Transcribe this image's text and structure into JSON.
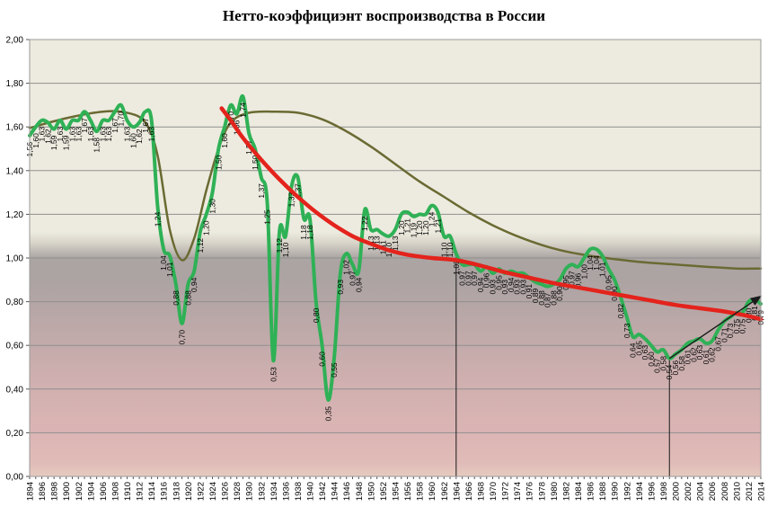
{
  "title": "Нетто-коэффициэнт воспроизводства в России",
  "chart_data": {
    "type": "line",
    "title": "Нетто-коэффициэнт воспроизводства в России",
    "xlabel": "",
    "ylabel": "",
    "x_start_year": 1894,
    "x_end_year": 2014,
    "x_label_step": 2,
    "ylim": [
      0.0,
      2.0
    ],
    "y_tick_step": 0.2,
    "decimal_separator": ",",
    "grid": "horizontal",
    "legend": "none",
    "background_gradient": [
      {
        "pos": 0.0,
        "color": "#EDEBDF"
      },
      {
        "pos": 0.44,
        "color": "#EDEBDF"
      },
      {
        "pos": 0.465,
        "color": "#D8D4C9"
      },
      {
        "pos": 0.5,
        "color": "#ABA5A3"
      },
      {
        "pos": 0.55,
        "color": "#ACA3A3"
      },
      {
        "pos": 0.65,
        "color": "#BCA8A8"
      },
      {
        "pos": 0.775,
        "color": "#CFAFAF"
      },
      {
        "pos": 0.9,
        "color": "#DBB5B4"
      },
      {
        "pos": 0.97,
        "color": "#E0BCB8"
      },
      {
        "pos": 1.0,
        "color": "#E6CABF"
      }
    ],
    "series": [
      {
        "name": "net-reproduction-rate",
        "kind": "annual-data",
        "color": "#2FB156",
        "width": 4,
        "data_labels": true,
        "values": [
          1.56,
          1.6,
          1.63,
          1.62,
          1.59,
          1.63,
          1.59,
          1.63,
          1.63,
          1.67,
          1.63,
          1.58,
          1.63,
          1.63,
          1.67,
          1.7,
          1.63,
          1.6,
          1.62,
          1.67,
          1.63,
          1.24,
          1.04,
          1.01,
          0.88,
          0.7,
          0.88,
          0.94,
          1.12,
          1.2,
          1.3,
          1.5,
          1.6,
          1.7,
          1.66,
          1.74,
          1.57,
          1.5,
          1.37,
          1.25,
          0.53,
          1.12,
          1.1,
          1.33,
          1.37,
          1.18,
          1.18,
          0.8,
          0.6,
          0.35,
          0.55,
          0.93,
          1.02,
          0.97,
          0.94,
          1.22,
          1.13,
          1.13,
          1.11,
          1.1,
          1.13,
          1.2,
          1.21,
          1.19,
          1.2,
          1.2,
          1.24,
          1.21,
          1.1,
          1.1,
          1.02,
          0.97,
          0.97,
          0.97,
          0.94,
          0.96,
          0.93,
          0.95,
          0.93,
          0.94,
          0.93,
          0.93,
          0.91,
          0.89,
          0.88,
          0.87,
          0.88,
          0.9,
          0.95,
          0.97,
          0.96,
          1.0,
          1.04,
          1.04,
          1.01,
          0.95,
          0.9,
          0.82,
          0.73,
          0.64,
          0.65,
          0.63,
          0.6,
          0.57,
          0.58,
          0.54,
          0.56,
          0.58,
          0.61,
          0.62,
          0.63,
          0.61,
          0.62,
          0.67,
          0.71,
          0.73,
          0.75,
          0.75,
          0.8,
          0.81,
          0.79
        ]
      },
      {
        "name": "long-term-smoothed-trend",
        "kind": "curve",
        "color": "#6A6A33",
        "width": 2.5,
        "data_labels": false,
        "points": [
          [
            1894,
            1.595
          ],
          [
            1900,
            1.64
          ],
          [
            1906,
            1.67
          ],
          [
            1910,
            1.665
          ],
          [
            1913,
            1.62
          ],
          [
            1915,
            1.47
          ],
          [
            1917,
            1.13
          ],
          [
            1919,
            0.99
          ],
          [
            1921,
            1.09
          ],
          [
            1923,
            1.31
          ],
          [
            1925,
            1.5
          ],
          [
            1927,
            1.62
          ],
          [
            1930,
            1.665
          ],
          [
            1934,
            1.67
          ],
          [
            1938,
            1.665
          ],
          [
            1942,
            1.635
          ],
          [
            1946,
            1.58
          ],
          [
            1950,
            1.51
          ],
          [
            1954,
            1.43
          ],
          [
            1958,
            1.35
          ],
          [
            1962,
            1.28
          ],
          [
            1966,
            1.21
          ],
          [
            1970,
            1.15
          ],
          [
            1974,
            1.1
          ],
          [
            1978,
            1.06
          ],
          [
            1982,
            1.03
          ],
          [
            1986,
            1.01
          ],
          [
            1990,
            0.995
          ],
          [
            1995,
            0.98
          ],
          [
            2000,
            0.97
          ],
          [
            2005,
            0.96
          ],
          [
            2010,
            0.952
          ],
          [
            2014,
            0.952
          ]
        ]
      },
      {
        "name": "declining-trend",
        "kind": "curve",
        "color": "#E3231C",
        "width": 4.5,
        "data_labels": false,
        "points": [
          [
            1925.5,
            1.685
          ],
          [
            1927,
            1.63
          ],
          [
            1929,
            1.55
          ],
          [
            1932,
            1.45
          ],
          [
            1935,
            1.36
          ],
          [
            1938,
            1.28
          ],
          [
            1941,
            1.21
          ],
          [
            1944,
            1.15
          ],
          [
            1947,
            1.1
          ],
          [
            1950,
            1.065
          ],
          [
            1953,
            1.035
          ],
          [
            1956,
            1.015
          ],
          [
            1960,
            1.0
          ],
          [
            1964,
            0.99
          ],
          [
            1968,
            0.965
          ],
          [
            1972,
            0.935
          ],
          [
            1976,
            0.91
          ],
          [
            1980,
            0.885
          ],
          [
            1984,
            0.865
          ],
          [
            1988,
            0.845
          ],
          [
            1992,
            0.825
          ],
          [
            1996,
            0.805
          ],
          [
            2000,
            0.785
          ],
          [
            2004,
            0.77
          ],
          [
            2008,
            0.755
          ],
          [
            2011,
            0.74
          ],
          [
            2014,
            0.72
          ]
        ]
      }
    ],
    "annotations": {
      "vertical_reference_lines": [
        {
          "year": 1964,
          "from_value": 1.02,
          "to_value": 0.0
        },
        {
          "year": 1999,
          "from_value": 0.54,
          "to_value": 0.0
        }
      ],
      "trend_arrow": {
        "from": [
          1999,
          0.54
        ],
        "to": [
          2014,
          0.825
        ]
      }
    }
  }
}
